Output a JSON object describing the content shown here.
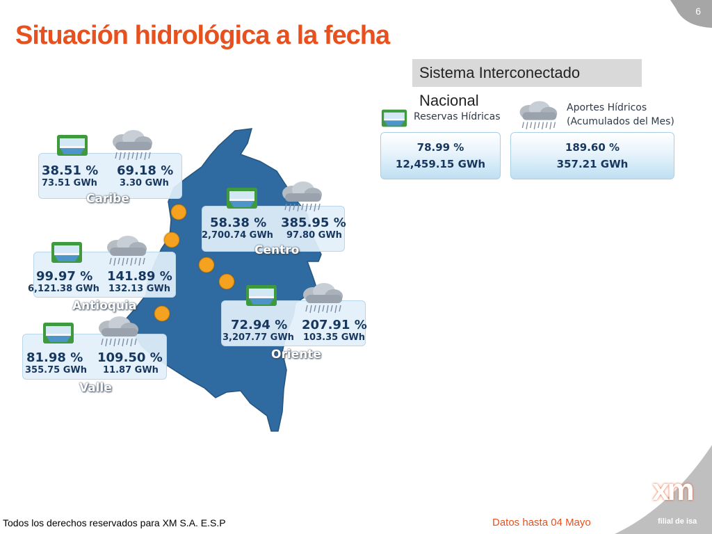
{
  "slide": {
    "page_number": "6",
    "title": "Situación hidrológica a la fecha"
  },
  "sin": {
    "label": "Sistema Interconectado Nacional",
    "reservas_title": "Reservas Hídricas",
    "aportes_title_line1": "Aportes Hídricos",
    "aportes_title_line2": "(Acumulados del Mes)",
    "reservas_pct": "78.99 %",
    "reservas_gwh": "12,459.15 GWh",
    "aportes_pct": "189.60 %",
    "aportes_gwh": "357.21 GWh"
  },
  "regions": {
    "caribe": {
      "name": "Caribe",
      "reservas_pct": "38.51 %",
      "reservas_gwh": "73.51 GWh",
      "aportes_pct": "69.18 %",
      "aportes_gwh": "3.30 GWh"
    },
    "centro": {
      "name": "Centro",
      "reservas_pct": "58.38 %",
      "reservas_gwh": "2,700.74 GWh",
      "aportes_pct": "385.95 %",
      "aportes_gwh": "97.80 GWh"
    },
    "antioquia": {
      "name": "Antioquia",
      "reservas_pct": "99.97 %",
      "reservas_gwh": "6,121.38 GWh",
      "aportes_pct": "141.89 %",
      "aportes_gwh": "132.13 GWh"
    },
    "oriente": {
      "name": "Oriente",
      "reservas_pct": "72.94 %",
      "reservas_gwh": "3,207.77 GWh",
      "aportes_pct": "207.91 %",
      "aportes_gwh": "103.35 GWh"
    },
    "valle": {
      "name": "Valle",
      "reservas_pct": "81.98 %",
      "reservas_gwh": "355.75 GWh",
      "aportes_pct": "109.50 %",
      "aportes_gwh": "11.87 GWh"
    }
  },
  "footer": {
    "rights": "Todos los derechos reservados para XM S.A. E.S.P",
    "date_note": "Datos hasta 04 Mayo",
    "logo_text": "xm",
    "logo_tagline": "filial de isa"
  },
  "colors": {
    "accent": "#e8501d",
    "map_fill": "#2f6aa0",
    "value_text": "#17375e",
    "marker": "#f4a21f"
  },
  "icons": {
    "reservoir": "reservoir-icon",
    "rain": "rain-cloud-icon",
    "marker": "location-dot-icon"
  }
}
